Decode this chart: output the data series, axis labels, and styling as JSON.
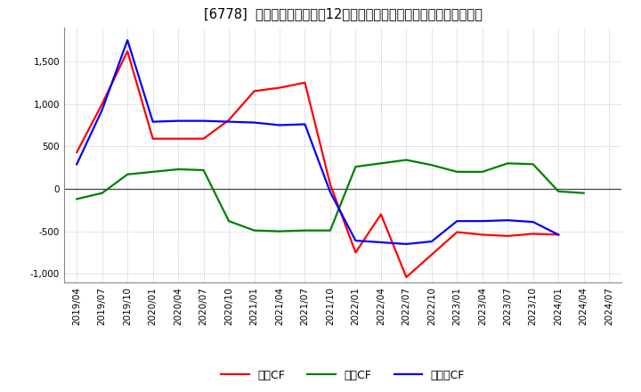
{
  "title": "[6778]  キャッシュフローの12か月移動合計の対前年同期増減額の推移",
  "background_color": "#ffffff",
  "plot_bg_color": "#ffffff",
  "grid_color": "#b0b0b0",
  "x_labels": [
    "2019/04",
    "2019/07",
    "2019/10",
    "2020/01",
    "2020/04",
    "2020/07",
    "2020/10",
    "2021/01",
    "2021/04",
    "2021/07",
    "2021/10",
    "2022/01",
    "2022/04",
    "2022/07",
    "2022/10",
    "2023/01",
    "2023/04",
    "2023/07",
    "2023/10",
    "2024/01",
    "2024/04",
    "2024/07"
  ],
  "operating_cf": [
    430,
    1000,
    1620,
    590,
    590,
    590,
    810,
    1150,
    1190,
    1250,
    50,
    -750,
    -300,
    -1040,
    null,
    -510,
    -540,
    -555,
    -530,
    -540,
    null,
    null
  ],
  "investing_cf": [
    -120,
    -50,
    170,
    200,
    230,
    220,
    -380,
    -490,
    -500,
    -490,
    -490,
    260,
    300,
    340,
    280,
    200,
    200,
    300,
    290,
    -30,
    -50,
    null
  ],
  "free_cf": [
    290,
    930,
    1750,
    790,
    800,
    800,
    790,
    780,
    750,
    760,
    -40,
    -610,
    -630,
    -650,
    -620,
    -380,
    -380,
    -370,
    -390,
    -540,
    null,
    null
  ],
  "ylim": [
    -1100,
    1900
  ],
  "yticks": [
    -1000,
    -500,
    0,
    500,
    1000,
    1500
  ],
  "series_colors": {
    "operating": "#ff0000",
    "investing": "#008000",
    "free": "#0000ff"
  },
  "legend_labels": {
    "operating": "営業CF",
    "investing": "投資CF",
    "free": "フリーCF"
  },
  "linewidth": 1.6,
  "title_fontsize": 10.5,
  "label_fontsize": 8.5,
  "tick_fontsize": 7.5
}
